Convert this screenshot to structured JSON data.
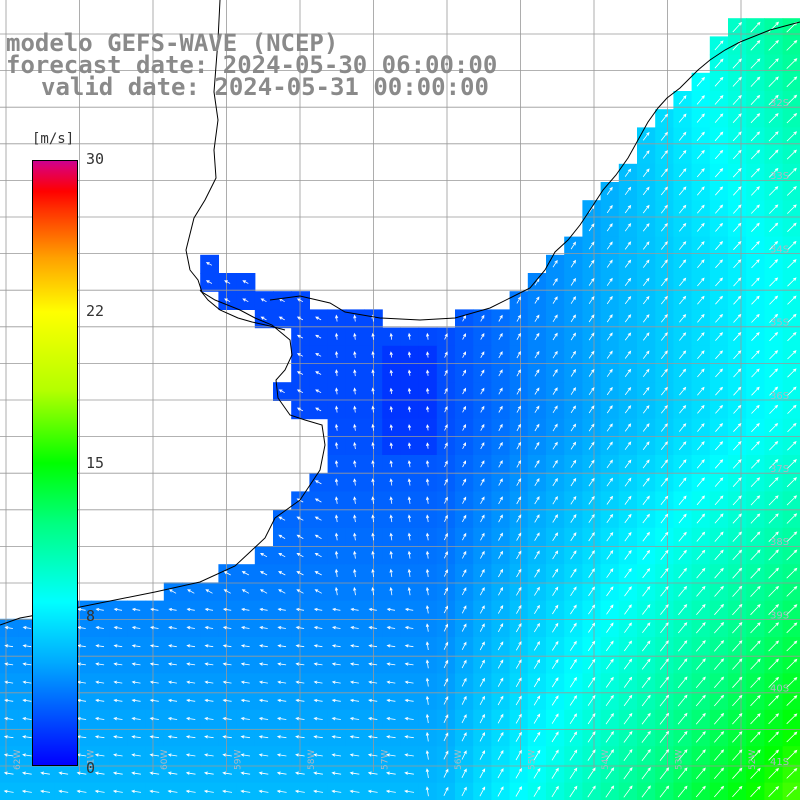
{
  "titles": {
    "model": "modelo GEFS-WAVE (NCEP)",
    "forecast": "forecast date: 2024-05-30 06:00:00",
    "valid": "valid date: 2024-05-31 00:00:00"
  },
  "colorbar": {
    "unit": "[m/s]",
    "ticks": [
      "30",
      "22",
      "15",
      "8",
      "0"
    ],
    "tick_values": [
      30,
      22,
      15,
      8,
      0
    ],
    "range": [
      0,
      30
    ],
    "colors": [
      "#0000ff",
      "#00aaff",
      "#00ffff",
      "#00ff80",
      "#00ff00",
      "#b4ff00",
      "#ffff00",
      "#ffa000",
      "#ff3000",
      "#ff0000",
      "#cc0090"
    ]
  },
  "map": {
    "land_color": "#ffffff",
    "coastline_color": "#000000",
    "gridline_color": "#999999",
    "arrow_color": "#ffffff",
    "lat_labels": [
      "32S",
      "33S",
      "34S",
      "35S",
      "36S",
      "37S",
      "38S",
      "39S",
      "40S",
      "41S"
    ],
    "lon_labels": [
      "62W",
      "61W",
      "60W",
      "59W",
      "58W",
      "57W",
      "56W",
      "55W",
      "54W",
      "53W",
      "52W"
    ]
  }
}
